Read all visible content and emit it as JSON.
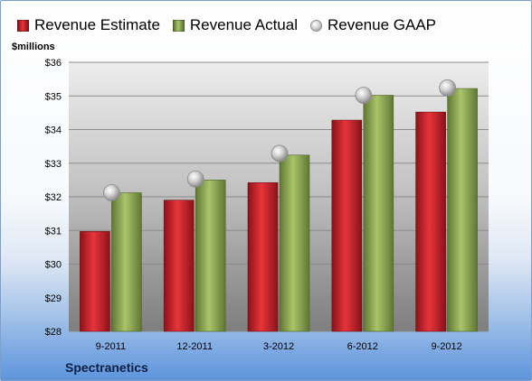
{
  "legend": [
    {
      "label": "Revenue Estimate",
      "color": "#cc2229"
    },
    {
      "label": "Revenue Actual",
      "color": "#8eab52"
    },
    {
      "label": "Revenue GAAP",
      "color": "#b3b3b3"
    }
  ],
  "unit_label": "$millions",
  "company": "Spectranetics",
  "chart_data": {
    "type": "bar",
    "categories": [
      "9-2011",
      "12-2011",
      "3-2012",
      "6-2012",
      "9-2012"
    ],
    "series": [
      {
        "name": "Revenue Estimate",
        "values": [
          30.97,
          31.9,
          32.42,
          34.28,
          34.52
        ]
      },
      {
        "name": "Revenue Actual",
        "values": [
          32.12,
          32.5,
          33.24,
          35.02,
          35.22
        ]
      },
      {
        "name": "Revenue GAAP",
        "values": [
          32.12,
          32.53,
          33.29,
          35.02,
          35.24
        ]
      }
    ],
    "ylim": [
      28,
      36
    ],
    "yticks": [
      "$28",
      "$29",
      "$30",
      "$31",
      "$32",
      "$33",
      "$34",
      "$35",
      "$36"
    ],
    "grid": true,
    "legend_position": "top"
  }
}
